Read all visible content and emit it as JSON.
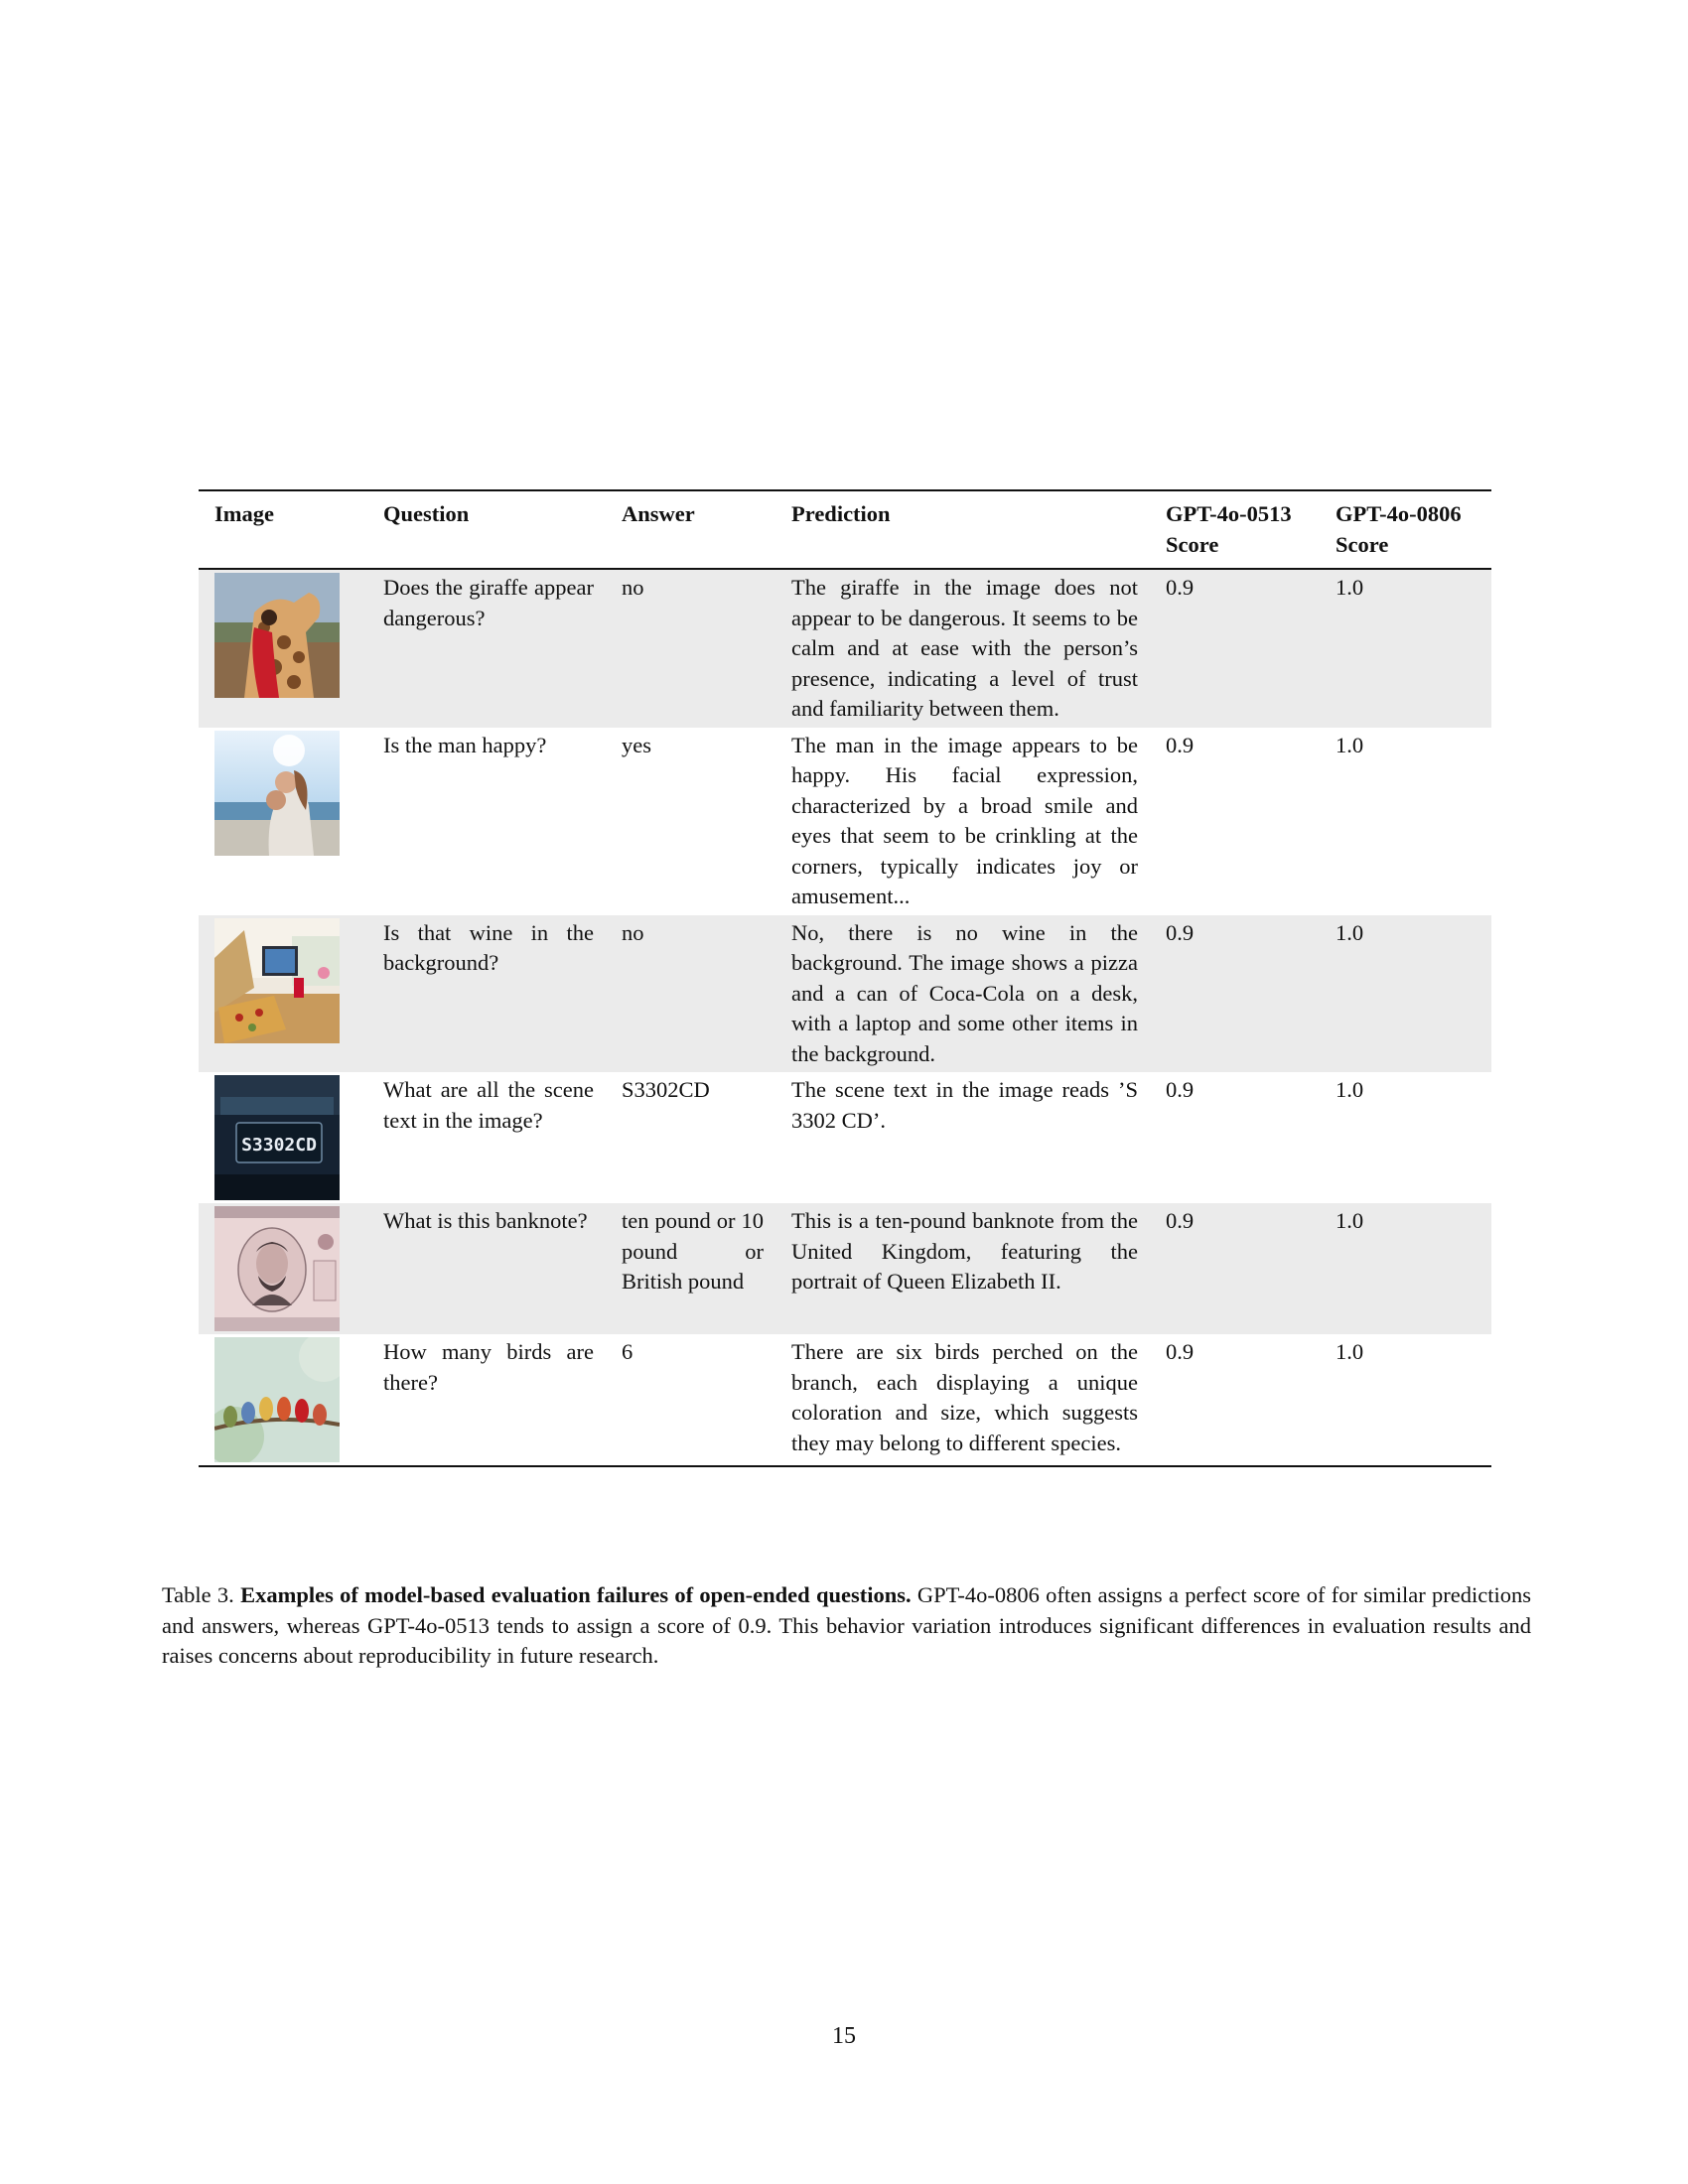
{
  "table": {
    "headers": {
      "image": "Image",
      "question": "Question",
      "answer": "Answer",
      "prediction": "Prediction",
      "score_0513": "GPT-4o-0513 Score",
      "score_0806": "GPT-4o-0806 Score"
    },
    "rows": [
      {
        "image_icon": "giraffe-photo",
        "question": "Does the giraffe appear dangerous?",
        "answer": "no",
        "prediction": "The giraffe in the image does not appear to be dangerous. It seems to be calm and at ease with the person’s presence, indicating a level of trust and familiarity between them.",
        "score_0513": "0.9",
        "score_0806": "1.0"
      },
      {
        "image_icon": "beach-couple-photo",
        "question": "Is the man happy?",
        "answer": "yes",
        "prediction": "The man in the image appears to be happy. His facial expression, characterized by a broad smile and eyes that seem to be crinkling at the corners, typically indicates joy or amusement...",
        "score_0513": "0.9",
        "score_0806": "1.0"
      },
      {
        "image_icon": "pizza-desk-photo",
        "question": "Is that wine in the background?",
        "answer": "no",
        "prediction": "No, there is no wine in the background. The image shows a pizza and a can of Coca-Cola on a desk, with a laptop and some other items in the background.",
        "score_0513": "0.9",
        "score_0806": "1.0"
      },
      {
        "image_icon": "license-plate-photo",
        "image_text": "S3302CD",
        "question": "What are all the scene text in the image?",
        "answer": "S3302CD",
        "prediction": "The scene text in the image reads ’S 3302 CD’.",
        "score_0513": "0.9",
        "score_0806": "1.0"
      },
      {
        "image_icon": "banknote-photo",
        "question": "What is this banknote?",
        "answer": "ten pound or 10 pound or British pound",
        "prediction": "This is a ten-pound banknote from the United Kingdom, featuring the portrait of Queen Elizabeth II.",
        "score_0513": "0.9",
        "score_0806": "1.0"
      },
      {
        "image_icon": "birds-branch-photo",
        "question": "How many birds are there?",
        "answer": "6",
        "prediction": "There are six birds perched on the branch, each displaying a unique coloration and size, which suggests they may belong to different species.",
        "score_0513": "0.9",
        "score_0806": "1.0"
      }
    ]
  },
  "caption": {
    "label": "Table 3.",
    "title": "Examples of model-based evaluation failures of open-ended questions.",
    "body": "GPT-4o-0806 often assigns a perfect score of for similar predictions and answers, whereas GPT-4o-0513 tends to assign a score of 0.9. This behavior variation introduces significant differences in evaluation results and raises concerns about reproducibility in future research."
  },
  "page_number": "15"
}
